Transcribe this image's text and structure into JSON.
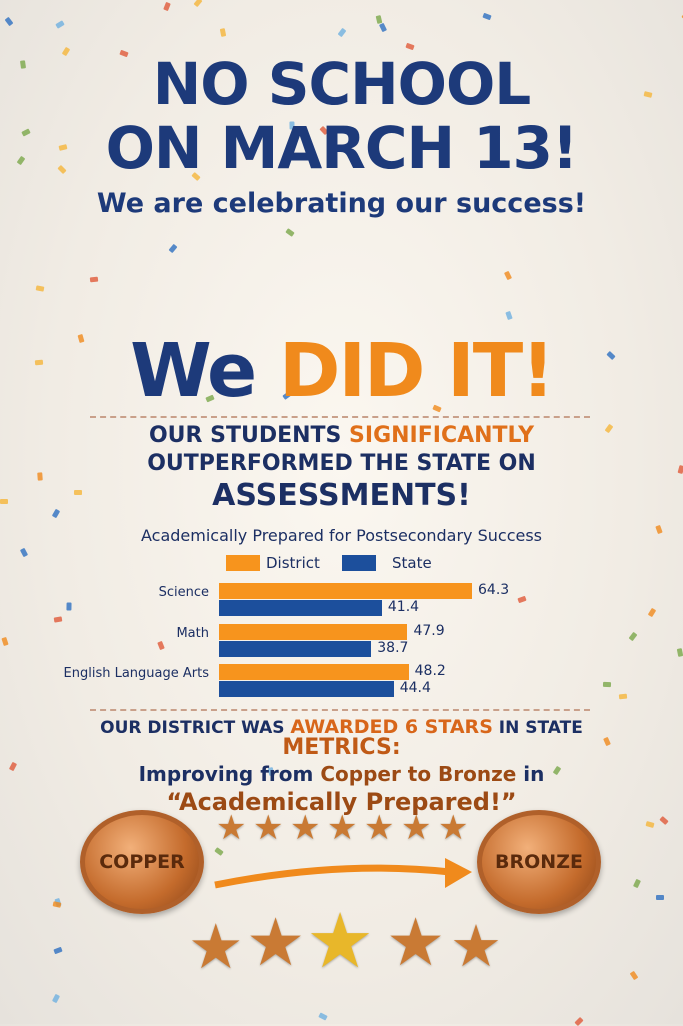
{
  "headline": {
    "line1": "NO SCHOOL",
    "line2": "ON MARCH 13!",
    "subtitle": "We are celebrating our success!"
  },
  "celebration": {
    "we": "We",
    "did_it": "DID IT!"
  },
  "outperform": {
    "part1": "OUR STUDENTS",
    "highlight": "SIGNIFICANTLY",
    "part2": "OUTPERFORMED THE STATE ON",
    "part3": "ASSESSMENTS!"
  },
  "chart_data": {
    "type": "bar",
    "orientation": "horizontal",
    "title": "Academically Prepared for Postsecondary Success",
    "categories": [
      "Science",
      "Math",
      "English Language Arts"
    ],
    "series": [
      {
        "name": "District",
        "color": "#f7941d",
        "values": [
          64.3,
          47.9,
          48.2
        ]
      },
      {
        "name": "State",
        "color": "#1c4f9c",
        "values": [
          41.4,
          38.7,
          44.4
        ]
      }
    ],
    "legend": "top",
    "grid": false
  },
  "awards": {
    "part1": "OUR DISTRICT WAS",
    "highlight": "AWARDED 6 STARS",
    "part2": "IN STATE",
    "metrics": "METRICS:",
    "improving": "Improving from",
    "copper_to_bronze": "Copper to Bronze",
    "in": "in",
    "category": "“Academically Prepared!”"
  },
  "medals": {
    "from": "COPPER",
    "to": "BRONZE"
  },
  "colors": {
    "navy": "#1d3a7a",
    "orange": "#f08a1c",
    "bronze": "#c46b2c"
  }
}
